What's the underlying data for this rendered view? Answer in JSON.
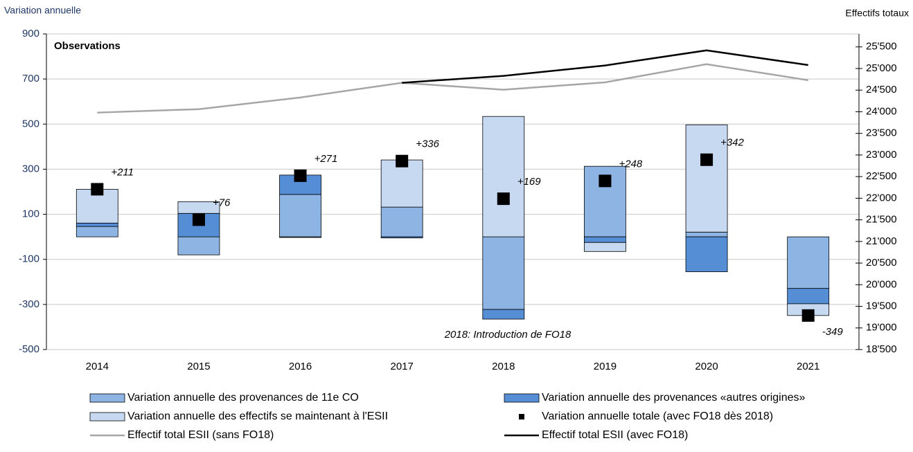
{
  "chart_data": {
    "type": "bar",
    "y_label": "Variation annuelle",
    "y2_label": "Effectifs totaux",
    "annotations": [
      "Observations",
      "2018: Introduction de FO18"
    ],
    "categories": [
      "2014",
      "2015",
      "2016",
      "2017",
      "2018",
      "2019",
      "2020",
      "2021"
    ],
    "ylim": [
      -500,
      900
    ],
    "yticks": [
      -500,
      -300,
      -100,
      100,
      300,
      500,
      700,
      900
    ],
    "y2lim": [
      18500,
      25800
    ],
    "y2ticks": [
      {
        "value": 18500,
        "label": "18'500"
      },
      {
        "value": 19000,
        "label": "19'000"
      },
      {
        "value": 19500,
        "label": "19'500"
      },
      {
        "value": 20000,
        "label": "20'000"
      },
      {
        "value": 20500,
        "label": "20'500"
      },
      {
        "value": 21000,
        "label": "21'000"
      },
      {
        "value": 21500,
        "label": "21'500"
      },
      {
        "value": 22000,
        "label": "22'000"
      },
      {
        "value": 22500,
        "label": "22'500"
      },
      {
        "value": 23000,
        "label": "23'000"
      },
      {
        "value": 23500,
        "label": "23'500"
      },
      {
        "value": 24000,
        "label": "24'000"
      },
      {
        "value": 24500,
        "label": "24'500"
      },
      {
        "value": 25000,
        "label": "25'000"
      },
      {
        "value": 25500,
        "label": "25'500"
      }
    ],
    "grid": true,
    "series": [
      {
        "name": "Variation annuelle des provenances de 11e CO",
        "type": "bar",
        "color": "#8db4e2",
        "values": [
          46,
          -80,
          188,
          132,
          -322,
          313,
          21,
          -229
        ]
      },
      {
        "name": "Variation annuelle des provenances «autres origines»",
        "type": "bar",
        "color": "#558ed5",
        "values": [
          15,
          104,
          86,
          -5,
          -43,
          -25,
          -155,
          -68
        ]
      },
      {
        "name": "Variation annuelle des effectifs se maintenant à l'ESII",
        "type": "bar",
        "color": "#c6d9f1",
        "values": [
          150,
          52,
          -3,
          209,
          534,
          -40,
          476,
          -52
        ]
      },
      {
        "name": "Variation annuelle totale (avec FO18 dès 2018)",
        "type": "marker",
        "color": "#000000",
        "values": [
          211,
          76,
          271,
          336,
          169,
          248,
          342,
          -349
        ],
        "value_labels": [
          "+211",
          "+76",
          "+271",
          "+336",
          "+169",
          "+248",
          "+342",
          "-349"
        ]
      },
      {
        "name": "Effectif total ESII (sans FO18)",
        "type": "line",
        "axis": "y2",
        "color": "#a6a6a6",
        "values": [
          23980,
          24060,
          24330,
          24670,
          24510,
          24680,
          25100,
          24730
        ]
      },
      {
        "name": "Effectif total ESII (avec FO18)",
        "type": "line",
        "axis": "y2",
        "color": "#000000",
        "values": [
          null,
          null,
          null,
          24670,
          24830,
          25070,
          25420,
          25080
        ]
      }
    ]
  }
}
